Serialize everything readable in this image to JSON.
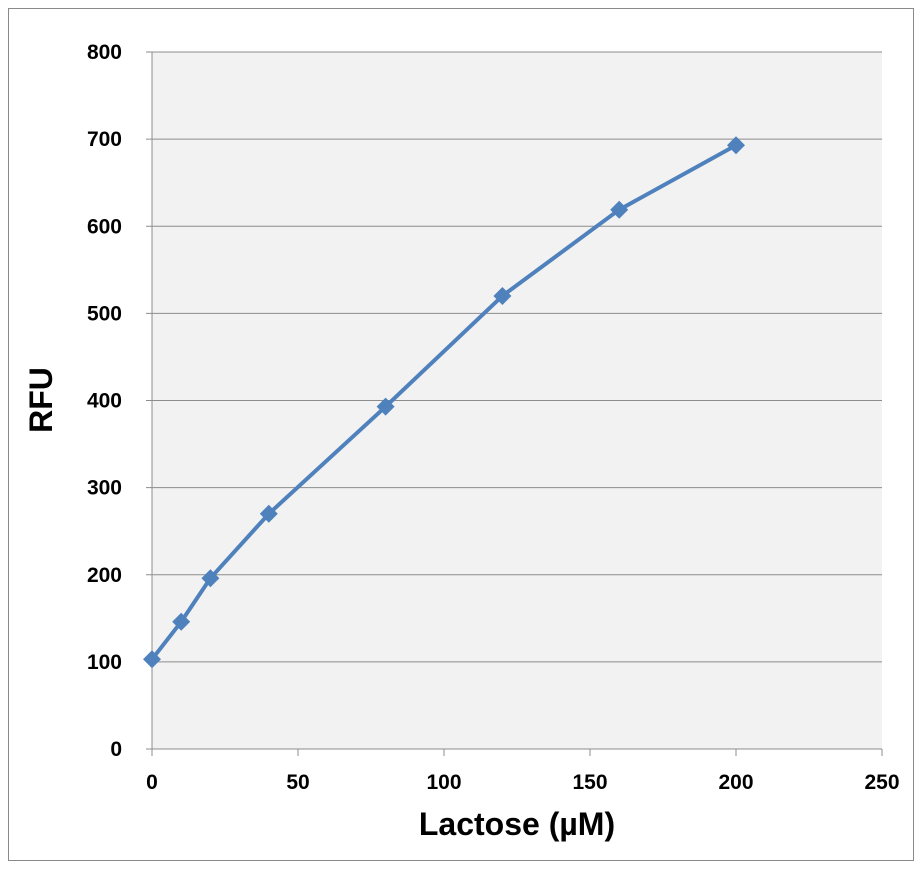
{
  "chart_data": {
    "type": "line",
    "title": "",
    "xlabel": "Lactose (µM)",
    "ylabel": "RFU",
    "xlim": [
      0,
      250
    ],
    "ylim": [
      0,
      800
    ],
    "x_ticks": [
      0,
      50,
      100,
      150,
      200,
      250
    ],
    "y_ticks": [
      0,
      100,
      200,
      300,
      400,
      500,
      600,
      700,
      800
    ],
    "grid": "horizontal",
    "legend": "none",
    "marker": "diamond",
    "series": [
      {
        "color": "#4f81bd",
        "x": [
          0,
          10,
          20,
          40,
          80,
          120,
          160,
          200
        ],
        "y": [
          103,
          146,
          196,
          270,
          393,
          520,
          619,
          693
        ]
      }
    ]
  }
}
